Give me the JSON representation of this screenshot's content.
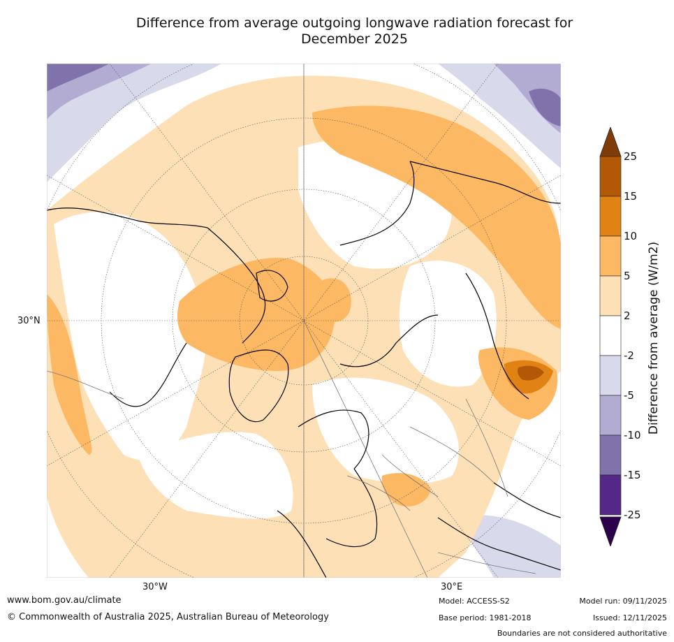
{
  "title": {
    "line1": "Difference from average outgoing longwave radiation forecast for",
    "line2": "December 2025"
  },
  "map": {
    "projection": "north polar stereographic",
    "labels": {
      "lat": "30°N",
      "lon_west": "30°W",
      "lon_east": "30°E"
    },
    "regions": [
      {
        "name": "arctic-basin",
        "category": "2 to 5"
      },
      {
        "name": "greenland",
        "category": "2 to 5"
      },
      {
        "name": "canadian-archipelago",
        "category": "5 to 10"
      },
      {
        "name": "north-pacific-band",
        "category": "5 to 10"
      },
      {
        "name": "eastern-siberia",
        "category": "5 to 10"
      },
      {
        "name": "central-asia-peak",
        "category": "15 to 25"
      },
      {
        "name": "northern-europe",
        "category": "-2 to 2"
      },
      {
        "name": "mediterranean",
        "category": "2 to 5"
      },
      {
        "name": "map-corners-tropics",
        "category": "-5 to -15"
      }
    ]
  },
  "colorbar": {
    "title": "Difference from average (W/m2)",
    "ticks": [
      "25",
      "15",
      "10",
      "5",
      "2",
      "-2",
      "-5",
      "-10",
      "-15",
      "-25"
    ],
    "colors": [
      "#b35806",
      "#e08214",
      "#fdb863",
      "#fee0b6",
      "#ffffff",
      "#d8daeb",
      "#b2abd2",
      "#8073ac",
      "#542788"
    ],
    "top_arrow_color": "#7f3b08",
    "bottom_arrow_color": "#2d004b"
  },
  "footer": {
    "url": "www.bom.gov.au/climate",
    "copyright": "© Commonwealth of Australia 2025, Australian Bureau of Meteorology",
    "model": "Model: ACCESS-S2",
    "base_period": "Base period: 1981-2018",
    "model_run": "Model run: 09/11/2025",
    "issued": "Issued: 12/11/2025",
    "boundaries": "Boundaries are not considered authoritative"
  }
}
